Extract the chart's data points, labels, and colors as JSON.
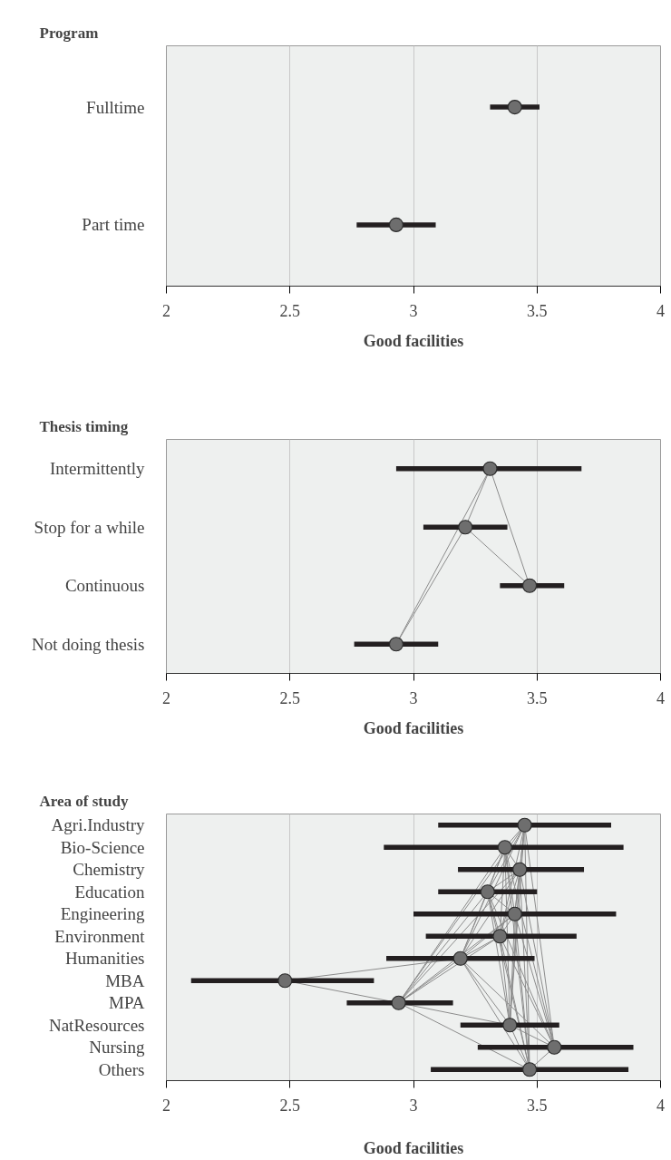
{
  "chart_data": [
    {
      "type": "scatter",
      "orientation": "horizontal",
      "title": "Program",
      "xlabel": "Good facilities",
      "categories": [
        "Fulltime",
        "Part time"
      ],
      "xlim": [
        2,
        4
      ],
      "xticks": [
        2,
        2.5,
        3,
        3.5,
        4
      ],
      "grid": "x",
      "series": [
        {
          "color": "#6e6e6e",
          "marker": "circle",
          "values": [
            3.41,
            2.93
          ],
          "errors": [
            [
              3.31,
              3.51
            ],
            [
              2.77,
              3.09
            ]
          ]
        }
      ]
    },
    {
      "type": "scatter",
      "orientation": "horizontal",
      "title": "Thesis timing",
      "xlabel": "Good facilities",
      "categories": [
        "Intermittently",
        "Stop for a while",
        "Continuous",
        "Not doing thesis"
      ],
      "xlim": [
        2,
        4
      ],
      "xticks": [
        2,
        2.5,
        3,
        3.5,
        4
      ],
      "grid": "x",
      "series": [
        {
          "type": "line",
          "color": "#8c8c8c",
          "values": [
            3.31,
            3.21,
            null,
            null
          ]
        },
        {
          "type": "line",
          "color": "#8c8c8c",
          "values": [
            3.31,
            null,
            3.47,
            null
          ]
        },
        {
          "type": "line",
          "color": "#8c8c8c",
          "values": [
            3.31,
            null,
            null,
            2.93
          ]
        },
        {
          "type": "line",
          "color": "#8c8c8c",
          "values": [
            null,
            3.21,
            3.47,
            null
          ]
        },
        {
          "type": "line",
          "color": "#8c8c8c",
          "values": [
            null,
            3.21,
            null,
            2.93
          ]
        },
        {
          "color": "#6e6e6e",
          "marker": "circle",
          "values": [
            3.31,
            3.21,
            3.47,
            2.93
          ],
          "errors": [
            [
              2.93,
              3.68
            ],
            [
              3.04,
              3.38
            ],
            [
              3.35,
              3.61
            ],
            [
              2.76,
              3.1
            ]
          ]
        }
      ]
    },
    {
      "type": "scatter",
      "orientation": "horizontal",
      "title": "Area of study",
      "xlabel": "Good facilities",
      "categories": [
        "Agri.Industry",
        "Bio-Science",
        "Chemistry",
        "Education",
        "Engineering",
        "Environment",
        "Humanities",
        "MBA",
        "MPA",
        "NatResources",
        "Nursing",
        "Others"
      ],
      "xlim": [
        2,
        4
      ],
      "xticks": [
        2,
        2.5,
        3,
        3.5,
        4
      ],
      "grid": "x",
      "series": [
        {
          "type": "line",
          "color": "#8c8c8c",
          "values": [
            null,
            null,
            null,
            null,
            null,
            null,
            3.19,
            2.48,
            null,
            null,
            null,
            null
          ]
        },
        {
          "type": "line",
          "color": "#8c8c8c",
          "values": [
            null,
            null,
            null,
            null,
            null,
            null,
            null,
            2.48,
            2.94,
            null,
            null,
            null
          ]
        },
        {
          "type": "line",
          "color": "#8c8c8c",
          "values": [
            3.45,
            null,
            null,
            null,
            null,
            null,
            null,
            null,
            2.94,
            null,
            null,
            null
          ]
        },
        {
          "type": "line",
          "color": "#8c8c8c",
          "values": [
            null,
            3.37,
            null,
            null,
            null,
            null,
            null,
            null,
            2.94,
            null,
            null,
            null
          ]
        },
        {
          "type": "line",
          "color": "#8c8c8c",
          "values": [
            null,
            null,
            3.43,
            null,
            null,
            null,
            null,
            null,
            2.94,
            null,
            null,
            null
          ]
        },
        {
          "type": "line",
          "color": "#8c8c8c",
          "values": [
            null,
            null,
            null,
            3.3,
            null,
            null,
            null,
            null,
            2.94,
            null,
            null,
            null
          ]
        },
        {
          "type": "line",
          "color": "#8c8c8c",
          "values": [
            null,
            null,
            null,
            null,
            3.41,
            null,
            null,
            null,
            2.94,
            null,
            null,
            null
          ]
        },
        {
          "type": "line",
          "color": "#8c8c8c",
          "values": [
            null,
            null,
            null,
            null,
            null,
            3.35,
            null,
            null,
            2.94,
            null,
            null,
            null
          ]
        },
        {
          "type": "line",
          "color": "#8c8c8c",
          "values": [
            null,
            null,
            null,
            null,
            null,
            null,
            3.19,
            null,
            2.94,
            null,
            null,
            null
          ]
        },
        {
          "type": "line",
          "color": "#8c8c8c",
          "values": [
            null,
            null,
            null,
            null,
            null,
            null,
            null,
            null,
            2.94,
            3.39,
            null,
            null
          ]
        },
        {
          "type": "line",
          "color": "#8c8c8c",
          "values": [
            null,
            null,
            null,
            null,
            null,
            null,
            null,
            null,
            2.94,
            null,
            null,
            3.47
          ]
        },
        {
          "type": "line",
          "color": "#8c8c8c",
          "values": [
            3.45,
            3.37,
            null,
            null,
            null,
            null,
            null,
            null,
            null,
            null,
            null,
            null
          ]
        },
        {
          "type": "line",
          "color": "#8c8c8c",
          "values": [
            3.45,
            null,
            3.43,
            null,
            null,
            null,
            null,
            null,
            null,
            null,
            null,
            null
          ]
        },
        {
          "type": "line",
          "color": "#8c8c8c",
          "values": [
            3.45,
            null,
            null,
            3.3,
            null,
            null,
            null,
            null,
            null,
            null,
            null,
            null
          ]
        },
        {
          "type": "line",
          "color": "#8c8c8c",
          "values": [
            3.45,
            null,
            null,
            null,
            3.41,
            null,
            null,
            null,
            null,
            null,
            null,
            null
          ]
        },
        {
          "type": "line",
          "color": "#8c8c8c",
          "values": [
            3.45,
            null,
            null,
            null,
            null,
            3.35,
            null,
            null,
            null,
            null,
            null,
            null
          ]
        },
        {
          "type": "line",
          "color": "#8c8c8c",
          "values": [
            3.45,
            null,
            null,
            null,
            null,
            null,
            3.19,
            null,
            null,
            null,
            null,
            null
          ]
        },
        {
          "type": "line",
          "color": "#8c8c8c",
          "values": [
            3.45,
            null,
            null,
            null,
            null,
            null,
            null,
            null,
            null,
            3.39,
            null,
            null
          ]
        },
        {
          "type": "line",
          "color": "#8c8c8c",
          "values": [
            3.45,
            null,
            null,
            null,
            null,
            null,
            null,
            null,
            null,
            null,
            3.57,
            null
          ]
        },
        {
          "type": "line",
          "color": "#8c8c8c",
          "values": [
            3.45,
            null,
            null,
            null,
            null,
            null,
            null,
            null,
            null,
            null,
            null,
            3.47
          ]
        },
        {
          "type": "line",
          "color": "#8c8c8c",
          "values": [
            null,
            3.37,
            3.43,
            null,
            null,
            null,
            null,
            null,
            null,
            null,
            null,
            null
          ]
        },
        {
          "type": "line",
          "color": "#8c8c8c",
          "values": [
            null,
            3.37,
            null,
            3.3,
            null,
            null,
            null,
            null,
            null,
            null,
            null,
            null
          ]
        },
        {
          "type": "line",
          "color": "#8c8c8c",
          "values": [
            null,
            3.37,
            null,
            null,
            3.41,
            null,
            null,
            null,
            null,
            null,
            null,
            null
          ]
        },
        {
          "type": "line",
          "color": "#8c8c8c",
          "values": [
            null,
            3.37,
            null,
            null,
            null,
            3.35,
            null,
            null,
            null,
            null,
            null,
            null
          ]
        },
        {
          "type": "line",
          "color": "#8c8c8c",
          "values": [
            null,
            3.37,
            null,
            null,
            null,
            null,
            3.19,
            null,
            null,
            null,
            null,
            null
          ]
        },
        {
          "type": "line",
          "color": "#8c8c8c",
          "values": [
            null,
            3.37,
            null,
            null,
            null,
            null,
            null,
            null,
            null,
            3.39,
            null,
            null
          ]
        },
        {
          "type": "line",
          "color": "#8c8c8c",
          "values": [
            null,
            3.37,
            null,
            null,
            null,
            null,
            null,
            null,
            null,
            null,
            3.57,
            null
          ]
        },
        {
          "type": "line",
          "color": "#8c8c8c",
          "values": [
            null,
            3.37,
            null,
            null,
            null,
            null,
            null,
            null,
            null,
            null,
            null,
            3.47
          ]
        },
        {
          "type": "line",
          "color": "#8c8c8c",
          "values": [
            null,
            null,
            3.43,
            3.3,
            null,
            null,
            null,
            null,
            null,
            null,
            null,
            null
          ]
        },
        {
          "type": "line",
          "color": "#8c8c8c",
          "values": [
            null,
            null,
            3.43,
            null,
            3.41,
            null,
            null,
            null,
            null,
            null,
            null,
            null
          ]
        },
        {
          "type": "line",
          "color": "#8c8c8c",
          "values": [
            null,
            null,
            3.43,
            null,
            null,
            3.35,
            null,
            null,
            null,
            null,
            null,
            null
          ]
        },
        {
          "type": "line",
          "color": "#8c8c8c",
          "values": [
            null,
            null,
            3.43,
            null,
            null,
            null,
            3.19,
            null,
            null,
            null,
            null,
            null
          ]
        },
        {
          "type": "line",
          "color": "#8c8c8c",
          "values": [
            null,
            null,
            3.43,
            null,
            null,
            null,
            null,
            null,
            null,
            3.39,
            null,
            null
          ]
        },
        {
          "type": "line",
          "color": "#8c8c8c",
          "values": [
            null,
            null,
            3.43,
            null,
            null,
            null,
            null,
            null,
            null,
            null,
            3.57,
            null
          ]
        },
        {
          "type": "line",
          "color": "#8c8c8c",
          "values": [
            null,
            null,
            3.43,
            null,
            null,
            null,
            null,
            null,
            null,
            null,
            null,
            3.47
          ]
        },
        {
          "type": "line",
          "color": "#8c8c8c",
          "values": [
            null,
            null,
            null,
            3.3,
            3.41,
            null,
            null,
            null,
            null,
            null,
            null,
            null
          ]
        },
        {
          "type": "line",
          "color": "#8c8c8c",
          "values": [
            null,
            null,
            null,
            3.3,
            null,
            3.35,
            null,
            null,
            null,
            null,
            null,
            null
          ]
        },
        {
          "type": "line",
          "color": "#8c8c8c",
          "values": [
            null,
            null,
            null,
            3.3,
            null,
            null,
            3.19,
            null,
            null,
            null,
            null,
            null
          ]
        },
        {
          "type": "line",
          "color": "#8c8c8c",
          "values": [
            null,
            null,
            null,
            3.3,
            null,
            null,
            null,
            null,
            null,
            3.39,
            null,
            null
          ]
        },
        {
          "type": "line",
          "color": "#8c8c8c",
          "values": [
            null,
            null,
            null,
            3.3,
            null,
            null,
            null,
            null,
            null,
            null,
            3.57,
            null
          ]
        },
        {
          "type": "line",
          "color": "#8c8c8c",
          "values": [
            null,
            null,
            null,
            3.3,
            null,
            null,
            null,
            null,
            null,
            null,
            null,
            3.47
          ]
        },
        {
          "type": "line",
          "color": "#8c8c8c",
          "values": [
            null,
            null,
            null,
            null,
            3.41,
            3.35,
            null,
            null,
            null,
            null,
            null,
            null
          ]
        },
        {
          "type": "line",
          "color": "#8c8c8c",
          "values": [
            null,
            null,
            null,
            null,
            3.41,
            null,
            3.19,
            null,
            null,
            null,
            null,
            null
          ]
        },
        {
          "type": "line",
          "color": "#8c8c8c",
          "values": [
            null,
            null,
            null,
            null,
            3.41,
            null,
            null,
            null,
            null,
            3.39,
            null,
            null
          ]
        },
        {
          "type": "line",
          "color": "#8c8c8c",
          "values": [
            null,
            null,
            null,
            null,
            3.41,
            null,
            null,
            null,
            null,
            null,
            3.57,
            null
          ]
        },
        {
          "type": "line",
          "color": "#8c8c8c",
          "values": [
            null,
            null,
            null,
            null,
            3.41,
            null,
            null,
            null,
            null,
            null,
            null,
            3.47
          ]
        },
        {
          "type": "line",
          "color": "#8c8c8c",
          "values": [
            null,
            null,
            null,
            null,
            null,
            3.35,
            3.19,
            null,
            null,
            null,
            null,
            null
          ]
        },
        {
          "type": "line",
          "color": "#8c8c8c",
          "values": [
            null,
            null,
            null,
            null,
            null,
            3.35,
            null,
            null,
            null,
            3.39,
            null,
            null
          ]
        },
        {
          "type": "line",
          "color": "#8c8c8c",
          "values": [
            null,
            null,
            null,
            null,
            null,
            3.35,
            null,
            null,
            null,
            null,
            3.57,
            null
          ]
        },
        {
          "type": "line",
          "color": "#8c8c8c",
          "values": [
            null,
            null,
            null,
            null,
            null,
            3.35,
            null,
            null,
            null,
            null,
            null,
            3.47
          ]
        },
        {
          "type": "line",
          "color": "#8c8c8c",
          "values": [
            null,
            null,
            null,
            null,
            null,
            null,
            3.19,
            null,
            null,
            3.39,
            null,
            null
          ]
        },
        {
          "type": "line",
          "color": "#8c8c8c",
          "values": [
            null,
            null,
            null,
            null,
            null,
            null,
            3.19,
            null,
            null,
            null,
            3.57,
            null
          ]
        },
        {
          "type": "line",
          "color": "#8c8c8c",
          "values": [
            null,
            null,
            null,
            null,
            null,
            null,
            3.19,
            null,
            null,
            null,
            null,
            3.47
          ]
        },
        {
          "type": "line",
          "color": "#8c8c8c",
          "values": [
            null,
            null,
            null,
            null,
            null,
            null,
            null,
            null,
            null,
            3.39,
            3.57,
            null
          ]
        },
        {
          "type": "line",
          "color": "#8c8c8c",
          "values": [
            null,
            null,
            null,
            null,
            null,
            null,
            null,
            null,
            null,
            3.39,
            null,
            3.47
          ]
        },
        {
          "type": "line",
          "color": "#8c8c8c",
          "values": [
            null,
            null,
            null,
            null,
            null,
            null,
            null,
            null,
            null,
            null,
            3.57,
            3.47
          ]
        },
        {
          "color": "#6e6e6e",
          "marker": "circle",
          "values": [
            3.45,
            3.37,
            3.43,
            3.3,
            3.41,
            3.35,
            3.19,
            2.48,
            2.94,
            3.39,
            3.57,
            3.47
          ],
          "errors": [
            [
              3.1,
              3.8
            ],
            [
              2.88,
              3.85
            ],
            [
              3.18,
              3.69
            ],
            [
              3.1,
              3.5
            ],
            [
              3.0,
              3.82
            ],
            [
              3.05,
              3.66
            ],
            [
              2.89,
              3.49
            ],
            [
              2.1,
              2.84
            ],
            [
              2.73,
              3.16
            ],
            [
              3.19,
              3.59
            ],
            [
              3.26,
              3.89
            ],
            [
              3.07,
              3.87
            ]
          ]
        }
      ]
    }
  ]
}
